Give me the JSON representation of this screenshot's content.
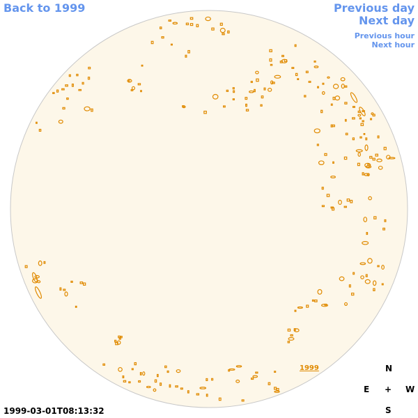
{
  "nav": {
    "back": "Back to 1999",
    "previous_day": "Previous day",
    "next_day": "Next day",
    "previous_hour": "Previous hour",
    "next_hour": "Next hour"
  },
  "compass": {
    "north": "N",
    "south": "S",
    "east": "E",
    "west": "W",
    "center": "+"
  },
  "timestamp": "1999-03-01T08:13:32",
  "year_label": "1999",
  "colors": {
    "disk_fill": "#fdf7e9",
    "disk_stroke": "#c8c8c8",
    "feature": "#e08a00",
    "link": "#6495ed"
  }
}
